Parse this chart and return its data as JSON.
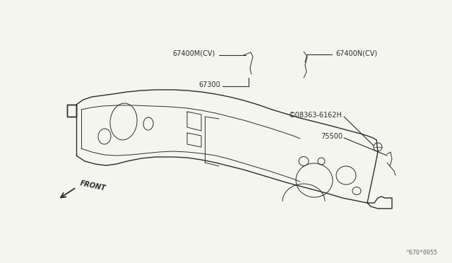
{
  "bg_color": "#f5f5f0",
  "line_color": "#2a2a2a",
  "text_color": "#2a2a2a",
  "fig_width": 6.4,
  "fig_height": 3.72,
  "dpi": 100,
  "watermark": "^670*0055",
  "label_67400M": "67400M(CV)",
  "label_67400N": "67400N(CV)",
  "label_67300": "67300",
  "label_08363": "©08363-6162H",
  "label_75500": "75500",
  "label_front": "FRONT"
}
